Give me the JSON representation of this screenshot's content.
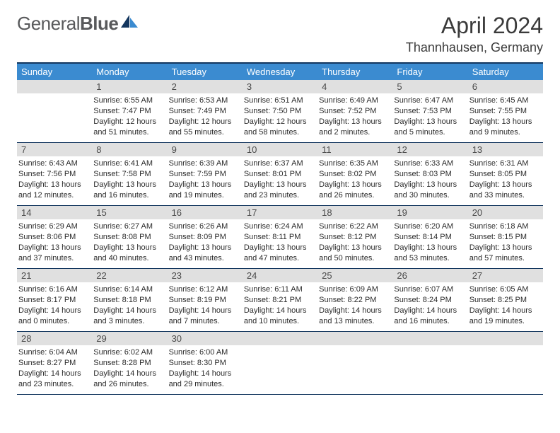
{
  "brand": {
    "part1": "General",
    "part2": "Blue"
  },
  "title": "April 2024",
  "location": "Thannhausen, Germany",
  "colors": {
    "header_bg": "#3b8bd0",
    "border": "#13365e",
    "daynum_bg": "#e0e0e0",
    "logo_text": "#58595b",
    "logo_icon_dark": "#13365e",
    "logo_icon_light": "#3b8bd0"
  },
  "weekdays": [
    "Sunday",
    "Monday",
    "Tuesday",
    "Wednesday",
    "Thursday",
    "Friday",
    "Saturday"
  ],
  "weeks": [
    [
      {
        "n": "",
        "sr": "",
        "ss": "",
        "dl": ""
      },
      {
        "n": "1",
        "sr": "6:55 AM",
        "ss": "7:47 PM",
        "dl": "12 hours and 51 minutes."
      },
      {
        "n": "2",
        "sr": "6:53 AM",
        "ss": "7:49 PM",
        "dl": "12 hours and 55 minutes."
      },
      {
        "n": "3",
        "sr": "6:51 AM",
        "ss": "7:50 PM",
        "dl": "12 hours and 58 minutes."
      },
      {
        "n": "4",
        "sr": "6:49 AM",
        "ss": "7:52 PM",
        "dl": "13 hours and 2 minutes."
      },
      {
        "n": "5",
        "sr": "6:47 AM",
        "ss": "7:53 PM",
        "dl": "13 hours and 5 minutes."
      },
      {
        "n": "6",
        "sr": "6:45 AM",
        "ss": "7:55 PM",
        "dl": "13 hours and 9 minutes."
      }
    ],
    [
      {
        "n": "7",
        "sr": "6:43 AM",
        "ss": "7:56 PM",
        "dl": "13 hours and 12 minutes."
      },
      {
        "n": "8",
        "sr": "6:41 AM",
        "ss": "7:58 PM",
        "dl": "13 hours and 16 minutes."
      },
      {
        "n": "9",
        "sr": "6:39 AM",
        "ss": "7:59 PM",
        "dl": "13 hours and 19 minutes."
      },
      {
        "n": "10",
        "sr": "6:37 AM",
        "ss": "8:01 PM",
        "dl": "13 hours and 23 minutes."
      },
      {
        "n": "11",
        "sr": "6:35 AM",
        "ss": "8:02 PM",
        "dl": "13 hours and 26 minutes."
      },
      {
        "n": "12",
        "sr": "6:33 AM",
        "ss": "8:03 PM",
        "dl": "13 hours and 30 minutes."
      },
      {
        "n": "13",
        "sr": "6:31 AM",
        "ss": "8:05 PM",
        "dl": "13 hours and 33 minutes."
      }
    ],
    [
      {
        "n": "14",
        "sr": "6:29 AM",
        "ss": "8:06 PM",
        "dl": "13 hours and 37 minutes."
      },
      {
        "n": "15",
        "sr": "6:27 AM",
        "ss": "8:08 PM",
        "dl": "13 hours and 40 minutes."
      },
      {
        "n": "16",
        "sr": "6:26 AM",
        "ss": "8:09 PM",
        "dl": "13 hours and 43 minutes."
      },
      {
        "n": "17",
        "sr": "6:24 AM",
        "ss": "8:11 PM",
        "dl": "13 hours and 47 minutes."
      },
      {
        "n": "18",
        "sr": "6:22 AM",
        "ss": "8:12 PM",
        "dl": "13 hours and 50 minutes."
      },
      {
        "n": "19",
        "sr": "6:20 AM",
        "ss": "8:14 PM",
        "dl": "13 hours and 53 minutes."
      },
      {
        "n": "20",
        "sr": "6:18 AM",
        "ss": "8:15 PM",
        "dl": "13 hours and 57 minutes."
      }
    ],
    [
      {
        "n": "21",
        "sr": "6:16 AM",
        "ss": "8:17 PM",
        "dl": "14 hours and 0 minutes."
      },
      {
        "n": "22",
        "sr": "6:14 AM",
        "ss": "8:18 PM",
        "dl": "14 hours and 3 minutes."
      },
      {
        "n": "23",
        "sr": "6:12 AM",
        "ss": "8:19 PM",
        "dl": "14 hours and 7 minutes."
      },
      {
        "n": "24",
        "sr": "6:11 AM",
        "ss": "8:21 PM",
        "dl": "14 hours and 10 minutes."
      },
      {
        "n": "25",
        "sr": "6:09 AM",
        "ss": "8:22 PM",
        "dl": "14 hours and 13 minutes."
      },
      {
        "n": "26",
        "sr": "6:07 AM",
        "ss": "8:24 PM",
        "dl": "14 hours and 16 minutes."
      },
      {
        "n": "27",
        "sr": "6:05 AM",
        "ss": "8:25 PM",
        "dl": "14 hours and 19 minutes."
      }
    ],
    [
      {
        "n": "28",
        "sr": "6:04 AM",
        "ss": "8:27 PM",
        "dl": "14 hours and 23 minutes."
      },
      {
        "n": "29",
        "sr": "6:02 AM",
        "ss": "8:28 PM",
        "dl": "14 hours and 26 minutes."
      },
      {
        "n": "30",
        "sr": "6:00 AM",
        "ss": "8:30 PM",
        "dl": "14 hours and 29 minutes."
      },
      {
        "n": "",
        "sr": "",
        "ss": "",
        "dl": ""
      },
      {
        "n": "",
        "sr": "",
        "ss": "",
        "dl": ""
      },
      {
        "n": "",
        "sr": "",
        "ss": "",
        "dl": ""
      },
      {
        "n": "",
        "sr": "",
        "ss": "",
        "dl": ""
      }
    ]
  ],
  "labels": {
    "sunrise": "Sunrise:",
    "sunset": "Sunset:",
    "daylight": "Daylight:"
  }
}
